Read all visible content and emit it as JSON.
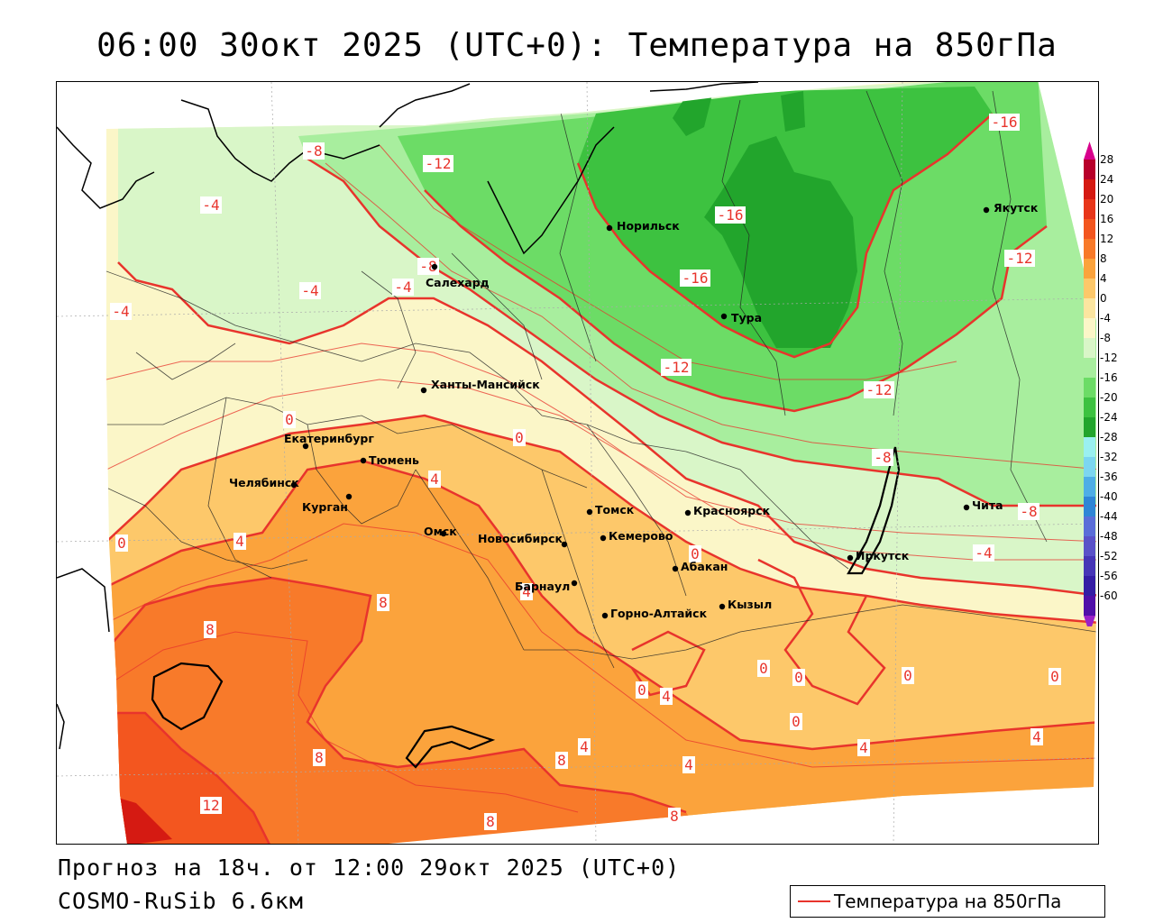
{
  "title": "06:00 30окт 2025 (UTC+0): Температура на 850гПа",
  "forecast_line": "Прогноз на 18ч. от 12:00 29окт 2025 (UTC+0)",
  "model_line": "COSMO-RuSib 6.6км",
  "legend": {
    "label": "Температура на 850гПа",
    "color": "#e8342c"
  },
  "colorbar": {
    "ticks": [
      "28",
      "24",
      "20",
      "16",
      "12",
      "8",
      "4",
      "0",
      "-4",
      "-8",
      "-12",
      "-16",
      "-20",
      "-24",
      "-28",
      "-32",
      "-36",
      "-40",
      "-44",
      "-48",
      "-52",
      "-56",
      "-60"
    ],
    "colors": [
      "#b8002a",
      "#d51a12",
      "#e8361a",
      "#f3561f",
      "#f87a2a",
      "#fba33c",
      "#fdc86a",
      "#fbe5a0",
      "#fbf6c8",
      "#d9f6c8",
      "#a8ee9e",
      "#6cdc66",
      "#3dc240",
      "#22a52c",
      "#9af0f0",
      "#7cd6f0",
      "#4eaee6",
      "#2f86d6",
      "#5a6ed8",
      "#5a52c8",
      "#4636b6",
      "#341ea4",
      "#5010a8"
    ]
  },
  "cities": [
    {
      "name": "Норильск"
    },
    {
      "name": "Якутск"
    },
    {
      "name": "Салехард"
    },
    {
      "name": "Тура"
    },
    {
      "name": "Ханты-Мансийск"
    },
    {
      "name": "Екатеринбург"
    },
    {
      "name": "Тюмень"
    },
    {
      "name": "Челябинск"
    },
    {
      "name": "Курган"
    },
    {
      "name": "Омск"
    },
    {
      "name": "Новосибирск"
    },
    {
      "name": "Томск"
    },
    {
      "name": "Кемерово"
    },
    {
      "name": "Красноярск"
    },
    {
      "name": "Абакан"
    },
    {
      "name": "Барнаул"
    },
    {
      "name": "Горно-Алтайск"
    },
    {
      "name": "Кызыл"
    },
    {
      "name": "Иркутск"
    },
    {
      "name": "Чита"
    }
  ],
  "isotherm_labels": [
    {
      "text": "-8"
    },
    {
      "text": "-12"
    },
    {
      "text": "-16"
    },
    {
      "text": "-4"
    },
    {
      "text": "-16"
    },
    {
      "text": "-12"
    },
    {
      "text": "-16"
    },
    {
      "text": "-4"
    },
    {
      "text": "-8"
    },
    {
      "text": "-4"
    },
    {
      "text": "-4"
    },
    {
      "text": "-12"
    },
    {
      "text": "-12"
    },
    {
      "text": "0"
    },
    {
      "text": "0"
    },
    {
      "text": "-8"
    },
    {
      "text": "4"
    },
    {
      "text": "-8"
    },
    {
      "text": "0"
    },
    {
      "text": "4"
    },
    {
      "text": "0"
    },
    {
      "text": "-4"
    },
    {
      "text": "4"
    },
    {
      "text": "8"
    },
    {
      "text": "8"
    },
    {
      "text": "0"
    },
    {
      "text": "0"
    },
    {
      "text": "0"
    },
    {
      "text": "0"
    },
    {
      "text": "0"
    },
    {
      "text": "4"
    },
    {
      "text": "0"
    },
    {
      "text": "4"
    },
    {
      "text": "8"
    },
    {
      "text": "4"
    },
    {
      "text": "4"
    },
    {
      "text": "8"
    },
    {
      "text": "4"
    },
    {
      "text": "12"
    },
    {
      "text": "8"
    },
    {
      "text": "8"
    }
  ]
}
